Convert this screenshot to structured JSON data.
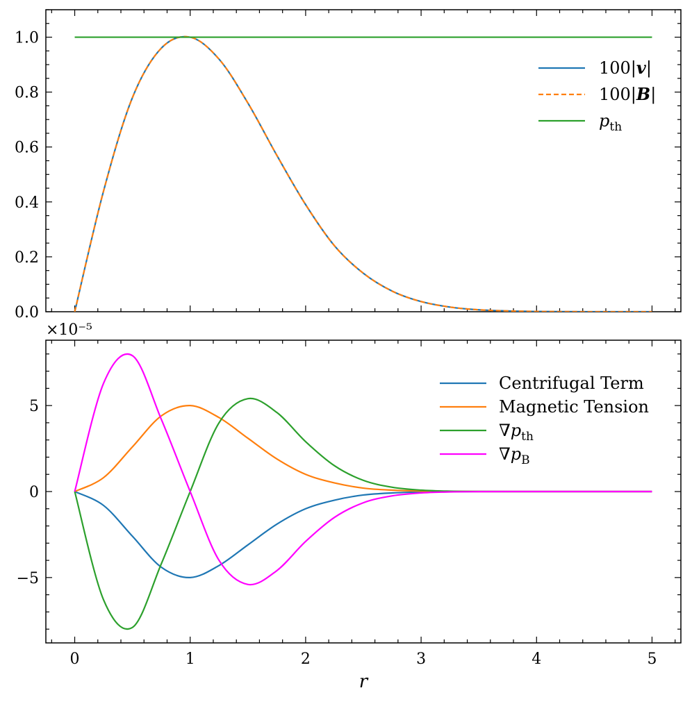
{
  "chart_data": [
    {
      "type": "line",
      "title": "",
      "xlabel": "",
      "ylabel": "",
      "xlim": [
        -0.25,
        5.25
      ],
      "ylim": [
        0,
        1.1
      ],
      "xticks": [
        0,
        1,
        2,
        3,
        4,
        5
      ],
      "yticks": [
        0,
        0.2,
        0.4,
        0.6,
        0.8,
        1.0
      ],
      "ytick_labels": [
        "0.0",
        "0.2",
        "0.4",
        "0.6",
        "0.8",
        "1.0"
      ],
      "legend_position": "upper-right",
      "x": [
        0,
        0.25,
        0.5,
        0.75,
        1.0,
        1.25,
        1.5,
        1.75,
        2.0,
        2.25,
        2.5,
        2.75,
        3.0,
        3.25,
        3.5,
        3.75,
        4.0,
        4.25,
        4.5,
        4.75,
        5.0
      ],
      "series": [
        {
          "name": "100|v|",
          "label_main": "100|",
          "label_bold": "v",
          "label_end": "|",
          "color": "#1f77b4",
          "dash": "solid",
          "values": [
            0,
            0.44,
            0.78,
            0.96,
            1.0,
            0.92,
            0.76,
            0.57,
            0.39,
            0.24,
            0.14,
            0.075,
            0.037,
            0.017,
            0.007,
            0.003,
            0.001,
            0.0004,
            0.0001,
            0.0,
            0.0
          ]
        },
        {
          "name": "100|B|",
          "label_main": "100|",
          "label_bold": "B",
          "label_end": "|",
          "color": "#ff7f0e",
          "dash": "dashed",
          "values": [
            0,
            0.44,
            0.78,
            0.96,
            1.0,
            0.92,
            0.76,
            0.57,
            0.39,
            0.24,
            0.14,
            0.075,
            0.037,
            0.017,
            0.007,
            0.003,
            0.001,
            0.0004,
            0.0001,
            0.0,
            0.0
          ]
        },
        {
          "name": "p_th",
          "label_main": "p",
          "label_sub": "th",
          "color": "#2ca02c",
          "dash": "solid",
          "values": [
            1,
            1,
            1,
            1,
            1,
            1,
            1,
            1,
            1,
            1,
            1,
            1,
            1,
            1,
            1,
            1,
            1,
            1,
            1,
            1,
            1
          ]
        }
      ]
    },
    {
      "type": "line",
      "title": "",
      "xlabel": "r",
      "ylabel": "",
      "offset_text": "×10⁻⁵",
      "xlim": [
        -0.25,
        5.25
      ],
      "ylim": [
        -8.8,
        8.8
      ],
      "xticks": [
        0,
        1,
        2,
        3,
        4,
        5
      ],
      "xtick_labels": [
        "0",
        "1",
        "2",
        "3",
        "4",
        "5"
      ],
      "yticks": [
        -5,
        0,
        5
      ],
      "ytick_labels": [
        "−5",
        "0",
        "5"
      ],
      "legend_position": "upper-right",
      "x": [
        0,
        0.25,
        0.5,
        0.75,
        1.0,
        1.25,
        1.5,
        1.75,
        2.0,
        2.25,
        2.5,
        2.75,
        3.0,
        3.25,
        3.5,
        3.75,
        4.0,
        4.25,
        4.5,
        4.75,
        5.0
      ],
      "series": [
        {
          "name": "Centrifugal Term",
          "label_main": "Centrifugal Term",
          "color": "#1f77b4",
          "values": [
            0,
            -0.81,
            -2.6,
            -4.4,
            -5.0,
            -4.3,
            -3.1,
            -1.9,
            -1.0,
            -0.5,
            -0.2,
            -0.08,
            -0.03,
            -0.01,
            0,
            0,
            0,
            0,
            0,
            0,
            0
          ]
        },
        {
          "name": "Magnetic Tension",
          "label_main": "Magnetic Tension",
          "color": "#ff7f0e",
          "values": [
            0,
            0.81,
            2.6,
            4.4,
            5.0,
            4.3,
            3.1,
            1.9,
            1.0,
            0.5,
            0.2,
            0.08,
            0.03,
            0.01,
            0,
            0,
            0,
            0,
            0,
            0,
            0
          ]
        },
        {
          "name": "∇p_th",
          "label_main": "∇p",
          "label_sub": "th",
          "color": "#2ca02c",
          "values": [
            0,
            -6.3,
            -7.9,
            -4.2,
            0,
            4.0,
            5.4,
            4.6,
            2.9,
            1.5,
            0.65,
            0.25,
            0.08,
            0.02,
            0.005,
            0,
            0,
            0,
            0,
            0,
            0
          ]
        },
        {
          "name": "∇p_B",
          "label_main": "∇p",
          "label_sub": "B",
          "color": "#ff00ff",
          "values": [
            0,
            6.3,
            7.9,
            4.2,
            0,
            -4.0,
            -5.4,
            -4.6,
            -2.9,
            -1.5,
            -0.65,
            -0.25,
            -0.08,
            -0.02,
            -0.005,
            0,
            0,
            0,
            0,
            0,
            0
          ]
        }
      ]
    }
  ]
}
